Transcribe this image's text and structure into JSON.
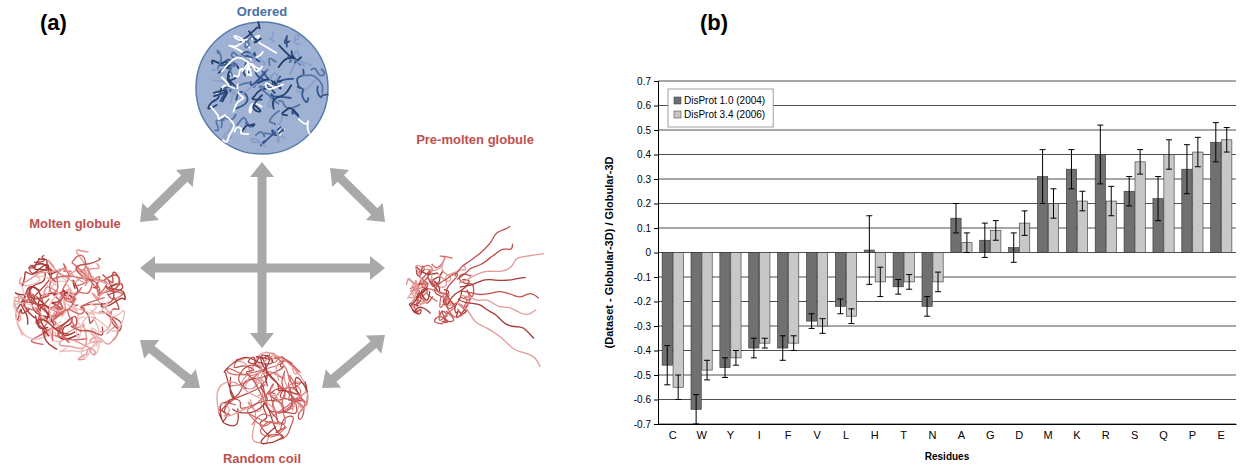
{
  "diagram": {
    "label": "(a)",
    "nodes": [
      {
        "label": "Ordered"
      },
      {
        "label": "Molten globule"
      },
      {
        "label": "Pre-molten globule"
      },
      {
        "label": "Random coil"
      }
    ]
  },
  "chart_data": {
    "type": "bar",
    "title": "(b)",
    "x_label": "Residues",
    "y_label": "(Dataset - Globular-3D) / Globular-3D",
    "categories": [
      "C",
      "W",
      "Y",
      "I",
      "F",
      "V",
      "L",
      "H",
      "T",
      "N",
      "A",
      "G",
      "D",
      "M",
      "K",
      "R",
      "S",
      "Q",
      "P",
      "E"
    ],
    "series": [
      {
        "name": "DisProt 1.0 (2004)",
        "color": "#707070",
        "values": [
          -0.46,
          -0.64,
          -0.47,
          -0.39,
          -0.39,
          -0.28,
          -0.22,
          0.01,
          -0.14,
          -0.22,
          0.14,
          0.05,
          0.02,
          0.31,
          0.34,
          0.4,
          0.25,
          0.22,
          0.34,
          0.45
        ],
        "errors": [
          0.08,
          0.06,
          0.04,
          0.04,
          0.05,
          0.03,
          0.03,
          0.14,
          0.03,
          0.04,
          0.06,
          0.07,
          0.06,
          0.11,
          0.08,
          0.12,
          0.06,
          0.09,
          0.1,
          0.08
        ]
      },
      {
        "name": "DisProt 3.4 (2006)",
        "color": "#c8c8c8",
        "values": [
          -0.55,
          -0.48,
          -0.43,
          -0.37,
          -0.37,
          -0.3,
          -0.26,
          -0.12,
          -0.12,
          -0.12,
          0.04,
          0.09,
          0.12,
          0.2,
          0.21,
          0.21,
          0.37,
          0.4,
          0.41,
          0.46
        ],
        "errors": [
          0.05,
          0.04,
          0.03,
          0.02,
          0.03,
          0.03,
          0.03,
          0.06,
          0.03,
          0.04,
          0.04,
          0.04,
          0.05,
          0.06,
          0.04,
          0.06,
          0.05,
          0.06,
          0.06,
          0.05
        ]
      }
    ],
    "ylim": [
      -0.7,
      0.7
    ],
    "yticks": [
      -0.7,
      -0.6,
      -0.5,
      -0.4,
      -0.3,
      -0.2,
      -0.1,
      0,
      0.1,
      0.2,
      0.3,
      0.4,
      0.5,
      0.6,
      0.7
    ],
    "grid": true,
    "legend": "upper left"
  }
}
